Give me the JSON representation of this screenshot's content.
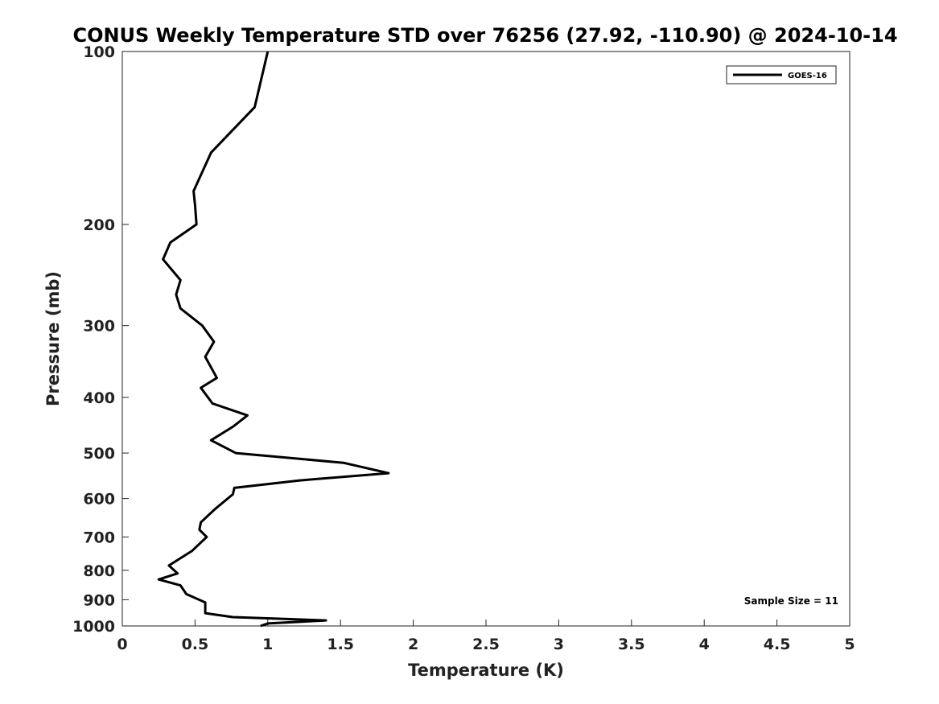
{
  "chart_data": {
    "type": "line",
    "title": "CONUS Weekly Temperature STD over 76256 (27.92, -110.90) @ 2024-10-14",
    "xlabel": "Temperature (K)",
    "ylabel": "Pressure (mb)",
    "xlim": [
      0,
      5
    ],
    "ylim": [
      100,
      1000
    ],
    "y_scale": "log",
    "y_inverted": true,
    "grid": false,
    "x_ticks": [
      0,
      0.5,
      1,
      1.5,
      2,
      2.5,
      3,
      3.5,
      4,
      4.5,
      5
    ],
    "x_tick_labels": [
      "0",
      "0.5",
      "1",
      "1.5",
      "2",
      "2.5",
      "3",
      "3.5",
      "4",
      "4.5",
      "5"
    ],
    "y_ticks": [
      100,
      200,
      300,
      400,
      500,
      600,
      700,
      800,
      900,
      1000
    ],
    "y_tick_labels": [
      "100",
      "200",
      "300",
      "400",
      "500",
      "600",
      "700",
      "800",
      "900",
      "1000"
    ],
    "legend_position": "top-right",
    "color": "#000000",
    "series": [
      {
        "name": "GOES-16",
        "x": [
          1.0,
          0.91,
          0.61,
          0.49,
          0.5,
          0.51,
          0.33,
          0.28,
          0.4,
          0.37,
          0.4,
          0.55,
          0.63,
          0.57,
          0.65,
          0.54,
          0.62,
          0.86,
          0.76,
          0.61,
          0.78,
          1.52,
          1.83,
          1.22,
          0.77,
          0.76,
          0.64,
          0.54,
          0.53,
          0.58,
          0.48,
          0.32,
          0.38,
          0.25,
          0.4,
          0.44,
          0.57,
          0.57,
          0.76,
          1.4,
          1.0,
          0.95
        ],
        "y": [
          100,
          125,
          150,
          175,
          185,
          200,
          215,
          230,
          250,
          265,
          280,
          300,
          320,
          340,
          370,
          385,
          410,
          430,
          450,
          475,
          500,
          520,
          542,
          558,
          575,
          590,
          625,
          660,
          680,
          700,
          740,
          785,
          810,
          830,
          850,
          880,
          910,
          950,
          965,
          978,
          990,
          1000
        ]
      }
    ],
    "annotations": [
      "Sample Size = 11"
    ]
  }
}
